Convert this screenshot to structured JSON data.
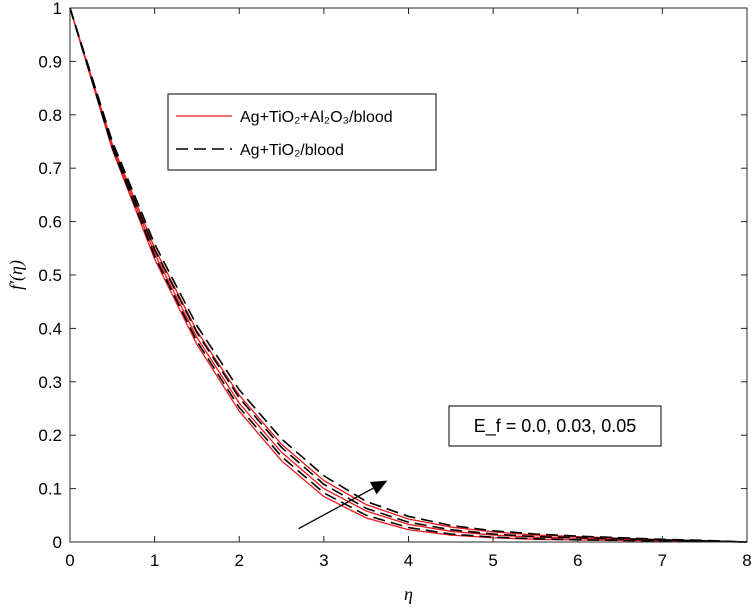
{
  "chart_data": {
    "type": "line",
    "title": "",
    "xlabel": "η",
    "ylabel": "f′(η)",
    "xlim": [
      0,
      8
    ],
    "ylim": [
      0,
      1
    ],
    "xticks": [
      "0",
      "1",
      "2",
      "3",
      "4",
      "5",
      "6",
      "7",
      "8"
    ],
    "yticks": [
      "0",
      "0.1",
      "0.2",
      "0.3",
      "0.4",
      "0.5",
      "0.6",
      "0.7",
      "0.8",
      "0.9",
      "1"
    ],
    "grid": false,
    "legend_position": "top-left",
    "legend": [
      {
        "label": "Ag+TiO₂+Al₂O₃/blood",
        "style": "solid",
        "color": "#e8191c"
      },
      {
        "label": "Ag+TiO₂/blood",
        "style": "dashed",
        "color": "#000000"
      }
    ],
    "annotation": {
      "text": "E_f = 0.0, 0.03, 0.05",
      "arrow_from": [
        2.7,
        0.025
      ],
      "arrow_to": [
        3.75,
        0.115
      ]
    },
    "x": [
      0,
      0.5,
      1,
      1.5,
      2,
      2.5,
      3,
      3.5,
      4,
      4.5,
      5,
      5.5,
      6,
      6.5,
      7,
      7.5,
      8
    ],
    "series": [
      {
        "group": "Ag+TiO₂+Al₂O₃/blood",
        "Ef": "0.0",
        "color": "#e8191c",
        "dash": "solid",
        "values": [
          1.0,
          0.735,
          0.53,
          0.37,
          0.245,
          0.152,
          0.085,
          0.045,
          0.023,
          0.013,
          0.008,
          0.005,
          0.004,
          0.003,
          0.002,
          0.001,
          0.0
        ]
      },
      {
        "group": "Ag+TiO₂+Al₂O₃/blood",
        "Ef": "0.03",
        "color": "#e8191c",
        "dash": "solid",
        "values": [
          1.0,
          0.74,
          0.54,
          0.383,
          0.26,
          0.168,
          0.1,
          0.058,
          0.033,
          0.02,
          0.013,
          0.009,
          0.007,
          0.005,
          0.003,
          0.002,
          0.0
        ]
      },
      {
        "group": "Ag+TiO₂+Al₂O₃/blood",
        "Ef": "0.05",
        "color": "#e8191c",
        "dash": "solid",
        "values": [
          1.0,
          0.745,
          0.55,
          0.395,
          0.275,
          0.183,
          0.115,
          0.07,
          0.043,
          0.028,
          0.019,
          0.013,
          0.01,
          0.007,
          0.004,
          0.002,
          0.0
        ]
      },
      {
        "group": "Ag+TiO₂/blood",
        "Ef": "0.0",
        "color": "#000000",
        "dash": "dashed",
        "values": [
          1.0,
          0.738,
          0.535,
          0.376,
          0.252,
          0.16,
          0.092,
          0.05,
          0.027,
          0.015,
          0.009,
          0.006,
          0.004,
          0.003,
          0.002,
          0.001,
          0.0
        ]
      },
      {
        "group": "Ag+TiO₂/blood",
        "Ef": "0.03",
        "color": "#000000",
        "dash": "dashed",
        "values": [
          1.0,
          0.745,
          0.547,
          0.392,
          0.27,
          0.177,
          0.108,
          0.063,
          0.037,
          0.023,
          0.015,
          0.01,
          0.008,
          0.006,
          0.004,
          0.002,
          0.0
        ]
      },
      {
        "group": "Ag+TiO₂/blood",
        "Ef": "0.05",
        "color": "#000000",
        "dash": "dashed",
        "values": [
          1.0,
          0.75,
          0.558,
          0.405,
          0.285,
          0.193,
          0.124,
          0.076,
          0.048,
          0.031,
          0.021,
          0.015,
          0.011,
          0.008,
          0.005,
          0.003,
          0.0
        ]
      }
    ]
  }
}
